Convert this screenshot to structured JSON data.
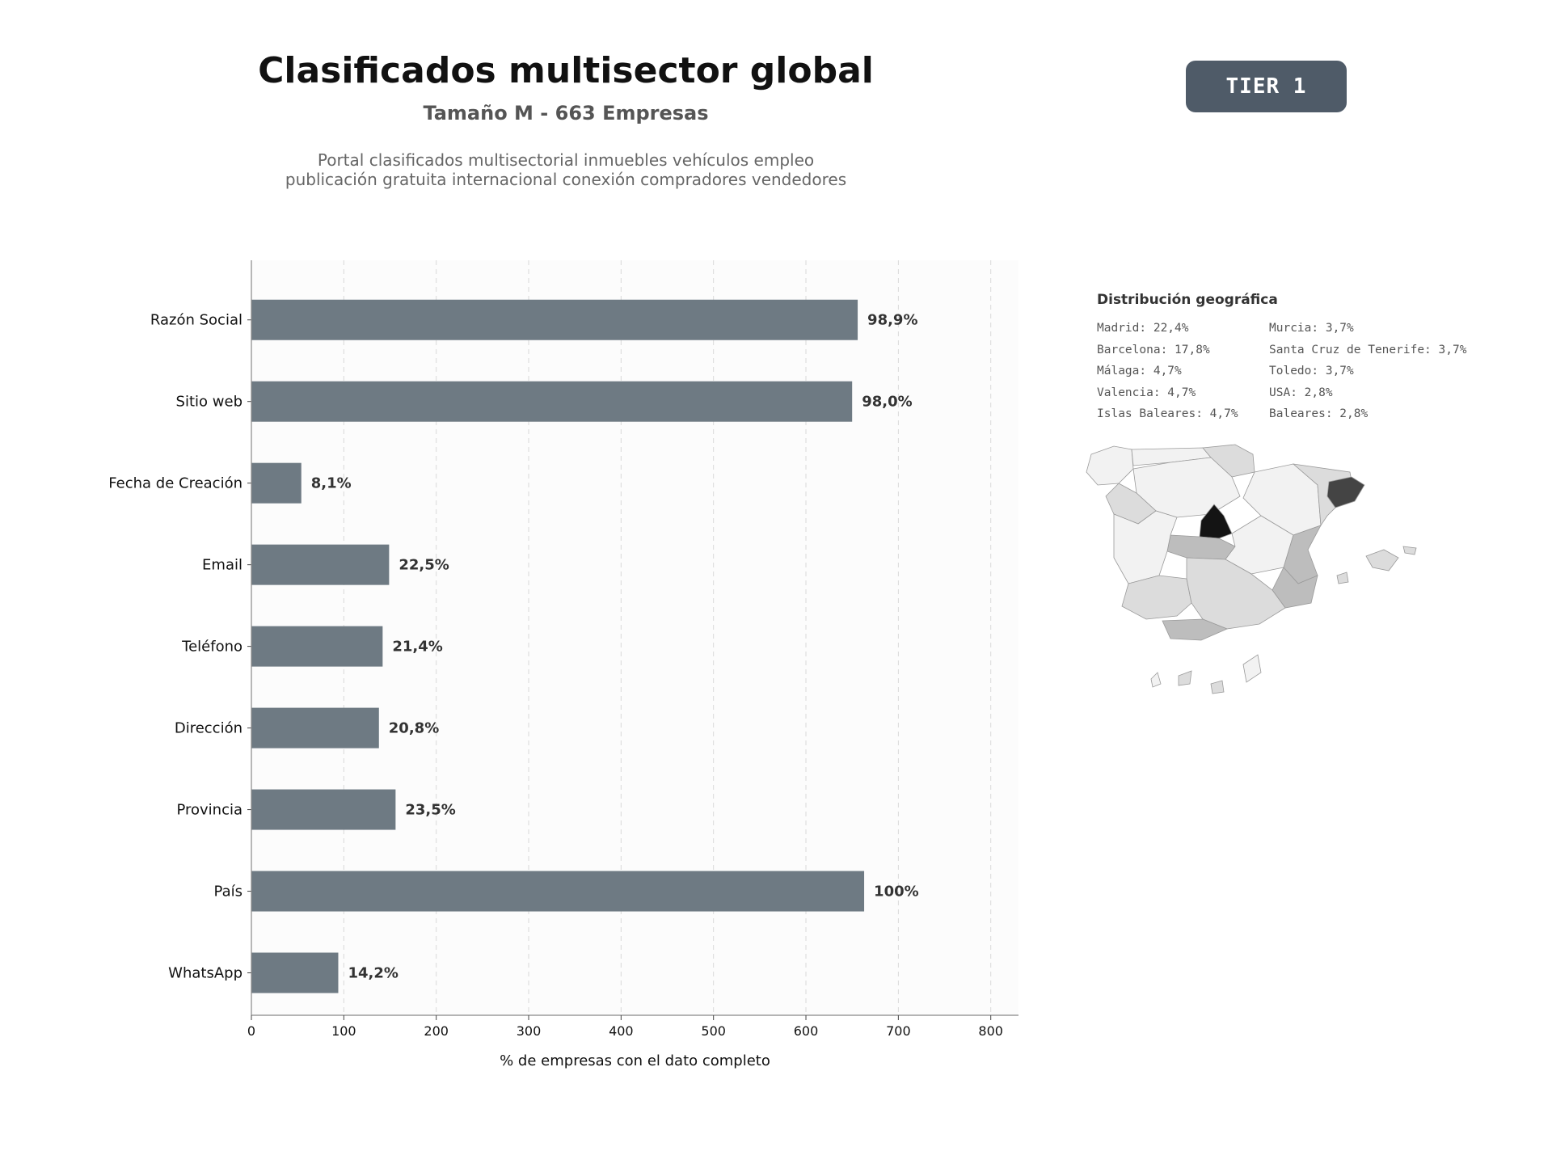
{
  "header": {
    "title": "Clasificados multisector global",
    "subtitle": "Tamaño M - 663 Empresas",
    "description_line1": "Portal clasificados multisectorial inmuebles vehículos empleo",
    "description_line2": "publicación gratuita internacional conexión compradores vendedores",
    "tier_label": "TIER 1",
    "tier_color": "#4f5b68"
  },
  "chart_data": {
    "type": "bar",
    "orientation": "horizontal",
    "categories": [
      "Razón Social",
      "Sitio web",
      "Fecha de Creación",
      "Email",
      "Teléfono",
      "Dirección",
      "Provincia",
      "País",
      "WhatsApp"
    ],
    "values": [
      656,
      650,
      54,
      149,
      142,
      138,
      156,
      663,
      94
    ],
    "data_labels": [
      "98,9%",
      "98,0%",
      "8,1%",
      "22,5%",
      "21,4%",
      "20,8%",
      "23,5%",
      "100%",
      "14,2%"
    ],
    "xlabel": "% de empresas con el dato completo",
    "ylabel": "",
    "xlim": [
      0,
      830
    ],
    "xticks": [
      0,
      100,
      200,
      300,
      400,
      500,
      600,
      700,
      800
    ],
    "grid": "vertical dashed",
    "bar_color": "#6e7a83",
    "plot_background": "#fcfcfc"
  },
  "geo": {
    "title": "Distribución geográfica",
    "items": [
      "Madrid: 22,4%",
      "Murcia: 3,7%",
      "Barcelona: 17,8%",
      "Santa Cruz de Tenerife: 3,7%",
      "Málaga: 4,7%",
      "Toledo: 3,7%",
      "Valencia: 4,7%",
      "USA: 2,8%",
      "Islas Baleares: 4,7%",
      "Baleares: 2,8%"
    ],
    "map_colors": {
      "none": "#f2f2f2",
      "low": "#dcdcdc",
      "mid": "#bdbdbd",
      "high": "#444444",
      "max": "#141414",
      "border": "#9a9a9a"
    }
  }
}
